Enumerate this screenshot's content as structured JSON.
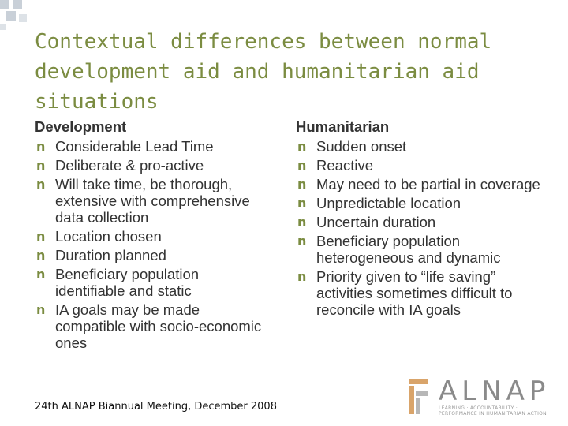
{
  "title": "Contextual differences between normal development aid and humanitarian aid situations",
  "bullet_glyph": "n",
  "development": {
    "heading": "Development ",
    "items": [
      "Considerable Lead Time",
      "Deliberate & pro-active",
      "Will take time, be thorough, extensive with comprehensive data collection",
      "Location chosen",
      "Duration planned",
      "Beneficiary population identifiable and static",
      "IA goals may be made compatible with socio-economic ones"
    ]
  },
  "humanitarian": {
    "heading": "Humanitarian",
    "items": [
      "Sudden onset",
      "Reactive",
      "May need to be partial in coverage",
      "Unpredictable location",
      "Uncertain duration",
      "Beneficiary population heterogeneous and dynamic",
      "Priority given to “life saving” activities sometimes difficult to reconcile with IA goals"
    ]
  },
  "footer": "24th ALNAP Biannual Meeting, December 2008",
  "logo": {
    "text": "ALNAP",
    "tagline": "LEARNING · ACCOUNTABILITY · PERFORMANCE IN HUMANITARIAN ACTION"
  },
  "colors": {
    "accent": "#7b8c41",
    "body_text": "#333333",
    "decor": "#c9d0d8",
    "logo_orange": "#d9a46a",
    "logo_grey": "#8a8a8a"
  }
}
